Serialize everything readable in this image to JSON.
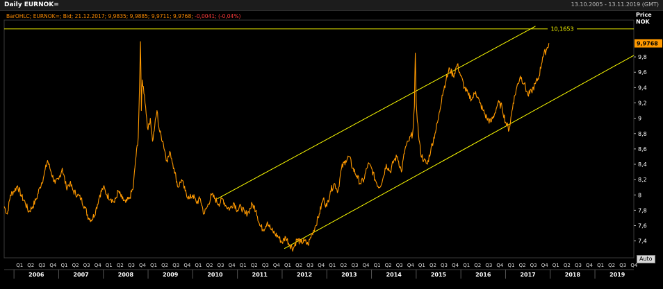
{
  "header": {
    "title": "Daily EURNOK=",
    "date_range": "13.10.2005 - 13.11.2019 (GMT)"
  },
  "info_line": {
    "prefix": "BarOHLC; EURNOK=; Bid; 21.12.2017; 9,9835; 9,9885; 9,9711; 9,9768;",
    "change": "-0,0041; (-0,04%)"
  },
  "axis": {
    "price_label": "Price",
    "currency_label": "NOK",
    "auto_label": "Auto"
  },
  "colors": {
    "series": "#ff9900",
    "trendline": "#ffff00",
    "last_price_badge": "#ff9900",
    "background": "#000000",
    "grid": "#2a2a2a"
  },
  "chart_data": {
    "type": "line",
    "title": "Daily EURNOK=",
    "ylabel": "Price NOK",
    "ylim": [
      7.18,
      10.28
    ],
    "xlim": [
      2005.78,
      2019.87
    ],
    "y_ticks": [
      {
        "v": 7.4,
        "label": "7,4"
      },
      {
        "v": 7.6,
        "label": "7,6"
      },
      {
        "v": 7.8,
        "label": "7,8"
      },
      {
        "v": 8.0,
        "label": "8"
      },
      {
        "v": 8.2,
        "label": "8,2"
      },
      {
        "v": 8.4,
        "label": "8,4"
      },
      {
        "v": 8.6,
        "label": "8,6"
      },
      {
        "v": 8.8,
        "label": "8,8"
      },
      {
        "v": 9.0,
        "label": "9"
      },
      {
        "v": 9.2,
        "label": "9,2"
      },
      {
        "v": 9.4,
        "label": "9,4"
      },
      {
        "v": 9.6,
        "label": "9,6"
      },
      {
        "v": 9.8,
        "label": "9,8"
      }
    ],
    "years": [
      "2006",
      "2007",
      "2008",
      "2009",
      "2010",
      "2011",
      "2012",
      "2013",
      "2014",
      "2015",
      "2016",
      "2017",
      "2018",
      "2019"
    ],
    "quarter_labels": [
      "Q1",
      "Q2",
      "Q3",
      "Q4"
    ],
    "last_price": {
      "value": 9.9768,
      "label": "9,9768"
    },
    "horizontal_line": {
      "value": 10.1653,
      "label": "10,1653"
    },
    "trend_channel": [
      {
        "from": [
          2010.55,
          7.95
        ],
        "to": [
          2017.67,
          10.2
        ]
      },
      {
        "from": [
          2012.05,
          7.3
        ],
        "to": [
          2019.87,
          9.82
        ]
      }
    ],
    "series": [
      {
        "x": [
          2005.78,
          2005.85,
          2005.92,
          2006.0,
          2006.08,
          2006.17,
          2006.25,
          2006.33,
          2006.42,
          2006.5,
          2006.58,
          2006.67,
          2006.75,
          2006.83,
          2006.92,
          2007.0,
          2007.08,
          2007.17,
          2007.25,
          2007.33,
          2007.42,
          2007.5,
          2007.58,
          2007.67,
          2007.75,
          2007.83,
          2007.92,
          2008.0,
          2008.08,
          2008.17,
          2008.25,
          2008.33,
          2008.42,
          2008.5,
          2008.58,
          2008.67,
          2008.72,
          2008.78,
          2008.8,
          2008.83,
          2008.85,
          2008.87,
          2008.92,
          2008.97,
          2009.0,
          2009.05,
          2009.1,
          2009.15,
          2009.2,
          2009.25,
          2009.33,
          2009.42,
          2009.5,
          2009.58,
          2009.67,
          2009.75,
          2009.83,
          2009.92,
          2010.0,
          2010.08,
          2010.17,
          2010.25,
          2010.33,
          2010.42,
          2010.5,
          2010.58,
          2010.67,
          2010.75,
          2010.83,
          2010.92,
          2011.0,
          2011.08,
          2011.17,
          2011.25,
          2011.33,
          2011.42,
          2011.5,
          2011.58,
          2011.67,
          2011.75,
          2011.83,
          2011.92,
          2012.0,
          2012.08,
          2012.17,
          2012.25,
          2012.33,
          2012.42,
          2012.5,
          2012.58,
          2012.67,
          2012.75,
          2012.83,
          2012.92,
          2013.0,
          2013.08,
          2013.17,
          2013.25,
          2013.33,
          2013.42,
          2013.5,
          2013.58,
          2013.67,
          2013.75,
          2013.83,
          2013.92,
          2014.0,
          2014.08,
          2014.17,
          2014.25,
          2014.33,
          2014.42,
          2014.5,
          2014.58,
          2014.67,
          2014.75,
          2014.83,
          2014.92,
          2014.96,
          2014.98,
          2015.0,
          2015.05,
          2015.1,
          2015.17,
          2015.25,
          2015.33,
          2015.42,
          2015.5,
          2015.58,
          2015.67,
          2015.75,
          2015.83,
          2015.92,
          2016.0,
          2016.08,
          2016.17,
          2016.25,
          2016.33,
          2016.42,
          2016.5,
          2016.58,
          2016.67,
          2016.75,
          2016.83,
          2016.92,
          2017.0,
          2017.08,
          2017.17,
          2017.25,
          2017.33,
          2017.42,
          2017.5,
          2017.58,
          2017.67,
          2017.75,
          2017.83,
          2017.92,
          2017.97
        ],
        "values": [
          7.85,
          7.75,
          8.0,
          8.05,
          8.12,
          7.98,
          7.9,
          7.78,
          7.85,
          7.95,
          8.1,
          8.25,
          8.45,
          8.3,
          8.15,
          8.2,
          8.35,
          8.1,
          8.15,
          8.05,
          8.0,
          7.95,
          7.85,
          7.7,
          7.68,
          7.8,
          8.0,
          8.1,
          8.0,
          7.95,
          7.9,
          8.05,
          7.95,
          7.9,
          7.95,
          8.1,
          8.45,
          8.75,
          9.2,
          10.0,
          9.1,
          9.5,
          9.3,
          9.0,
          8.85,
          9.0,
          8.7,
          8.9,
          9.1,
          8.85,
          8.7,
          8.45,
          8.55,
          8.35,
          8.1,
          8.2,
          8.05,
          7.95,
          8.0,
          7.9,
          7.95,
          7.75,
          7.85,
          8.0,
          7.95,
          7.88,
          7.95,
          7.85,
          7.82,
          7.9,
          7.8,
          7.85,
          7.75,
          7.78,
          7.88,
          7.8,
          7.6,
          7.55,
          7.65,
          7.55,
          7.5,
          7.45,
          7.38,
          7.45,
          7.35,
          7.3,
          7.42,
          7.38,
          7.4,
          7.35,
          7.5,
          7.6,
          7.75,
          7.95,
          7.85,
          8.05,
          8.15,
          8.05,
          8.35,
          8.45,
          8.5,
          8.35,
          8.25,
          8.15,
          8.2,
          8.4,
          8.35,
          8.2,
          8.1,
          8.2,
          8.4,
          8.3,
          8.45,
          8.5,
          8.3,
          8.6,
          8.7,
          8.8,
          9.15,
          9.85,
          9.2,
          8.8,
          8.55,
          8.45,
          8.4,
          8.6,
          8.8,
          9.0,
          9.3,
          9.5,
          9.65,
          9.55,
          9.7,
          9.55,
          9.4,
          9.3,
          9.25,
          9.35,
          9.2,
          9.1,
          9.0,
          8.95,
          9.05,
          9.2,
          9.15,
          8.95,
          8.85,
          9.2,
          9.4,
          9.55,
          9.45,
          9.3,
          9.35,
          9.45,
          9.55,
          9.8,
          9.9,
          9.98
        ]
      }
    ]
  }
}
